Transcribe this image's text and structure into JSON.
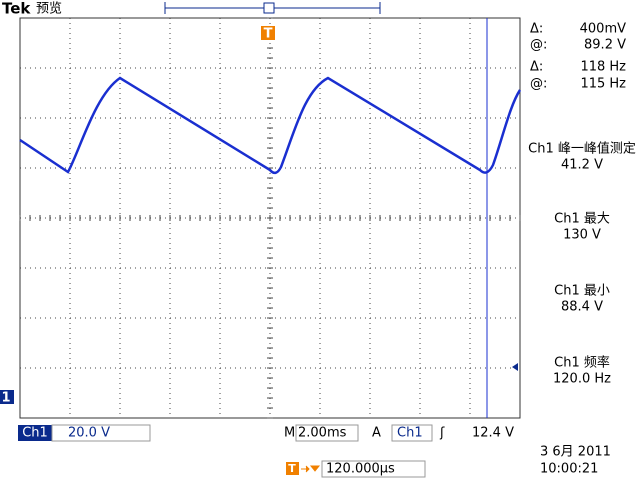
{
  "header": {
    "brand": "Tek",
    "status": "预览"
  },
  "markers": {
    "trigger": "T",
    "channel": "1"
  },
  "cursor": [
    {
      "label": "Δ:",
      "value": "400mV"
    },
    {
      "label": "@:",
      "value": "89.2 V"
    },
    {
      "label": "Δ:",
      "value": "118 Hz"
    },
    {
      "label": "@:",
      "value": "115 Hz"
    }
  ],
  "measurements": [
    {
      "name": "Ch1 峰一峰值测定",
      "value": "41.2 V"
    },
    {
      "name": "Ch1 最大",
      "value": "130 V"
    },
    {
      "name": "Ch1 最小",
      "value": "88.4 V"
    },
    {
      "name": "Ch1 频率",
      "value": "120.0 Hz"
    }
  ],
  "footer": {
    "channel": "Ch1",
    "scale": "20.0 V",
    "time_prefix": "M",
    "timebase": "2.00ms",
    "trigger_mode": "A",
    "trigger_source": "Ch1",
    "trigger_slope": "ʃ",
    "trigger_level": "12.4 V",
    "trigger_position": "120.000µs",
    "date": "3 6月 2011",
    "time": "10:00:21"
  }
}
